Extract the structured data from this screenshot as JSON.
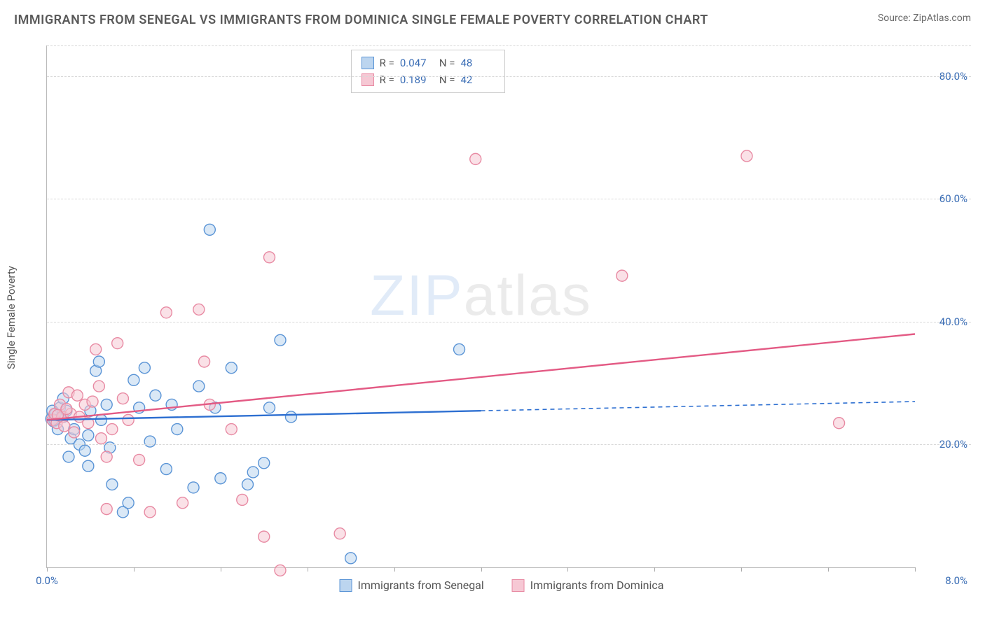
{
  "title": "IMMIGRANTS FROM SENEGAL VS IMMIGRANTS FROM DOMINICA SINGLE FEMALE POVERTY CORRELATION CHART",
  "source": "Source: ZipAtlas.com",
  "y_axis_label": "Single Female Poverty",
  "watermark": {
    "part1": "ZIP",
    "part2": "atlas"
  },
  "chart": {
    "type": "scatter",
    "xlim": [
      0,
      8.0
    ],
    "ylim": [
      0,
      85
    ],
    "y_ticks": [
      20.0,
      40.0,
      60.0,
      80.0
    ],
    "y_tick_labels": [
      "20.0%",
      "40.0%",
      "60.0%",
      "80.0%"
    ],
    "x_tick_positions": [
      0,
      0.8,
      1.6,
      2.4,
      3.2,
      4.0,
      4.8,
      5.6,
      6.4,
      7.2,
      8.0
    ],
    "x_min_label": "0.0%",
    "x_max_label": "8.0%",
    "grid_color": "#d8d8d8",
    "axis_color": "#bbbbbb",
    "background_color": "#ffffff",
    "marker_radius": 8,
    "marker_stroke_width": 1.4,
    "trend_line_width": 2.4,
    "series": [
      {
        "name": "Immigrants from Senegal",
        "fill": "#bcd5ef",
        "stroke": "#5a94d6",
        "fill_opacity": 0.55,
        "R": "0.047",
        "N": "48",
        "trend": {
          "x1": 0.0,
          "y1": 24.0,
          "x2": 4.0,
          "y2": 25.5,
          "x2_ext": 8.0,
          "y2_ext": 27.0,
          "color": "#2d6fd1",
          "dash_after_x": 4.0
        },
        "points": [
          [
            0.04,
            24.2
          ],
          [
            0.06,
            23.8
          ],
          [
            0.08,
            25.0
          ],
          [
            0.1,
            22.5
          ],
          [
            0.12,
            26.0
          ],
          [
            0.15,
            24.5
          ],
          [
            0.18,
            25.5
          ],
          [
            0.2,
            18.0
          ],
          [
            0.22,
            21.0
          ],
          [
            0.25,
            22.5
          ],
          [
            0.05,
            25.5
          ],
          [
            0.07,
            24.0
          ],
          [
            0.3,
            20.0
          ],
          [
            0.35,
            19.0
          ],
          [
            0.38,
            21.5
          ],
          [
            0.4,
            25.5
          ],
          [
            0.45,
            32.0
          ],
          [
            0.48,
            33.5
          ],
          [
            0.5,
            24.0
          ],
          [
            0.55,
            26.5
          ],
          [
            0.58,
            19.5
          ],
          [
            0.6,
            13.5
          ],
          [
            0.38,
            16.5
          ],
          [
            0.7,
            9.0
          ],
          [
            0.75,
            10.5
          ],
          [
            0.8,
            30.5
          ],
          [
            0.85,
            26.0
          ],
          [
            0.9,
            32.5
          ],
          [
            0.95,
            20.5
          ],
          [
            1.0,
            28.0
          ],
          [
            1.1,
            16.0
          ],
          [
            1.15,
            26.5
          ],
          [
            1.2,
            22.5
          ],
          [
            1.35,
            13.0
          ],
          [
            1.4,
            29.5
          ],
          [
            1.5,
            55.0
          ],
          [
            1.55,
            26.0
          ],
          [
            1.6,
            14.5
          ],
          [
            1.7,
            32.5
          ],
          [
            1.85,
            13.5
          ],
          [
            1.9,
            15.5
          ],
          [
            2.0,
            17.0
          ],
          [
            2.05,
            26.0
          ],
          [
            2.15,
            37.0
          ],
          [
            2.25,
            24.5
          ],
          [
            2.8,
            1.5
          ],
          [
            3.8,
            35.5
          ],
          [
            0.15,
            27.5
          ]
        ]
      },
      {
        "name": "Immigrants from Dominica",
        "fill": "#f6c8d4",
        "stroke": "#e88aa3",
        "fill_opacity": 0.55,
        "R": "0.189",
        "N": "42",
        "trend": {
          "x1": 0.0,
          "y1": 24.0,
          "x2": 8.0,
          "y2": 38.0,
          "color": "#e35a84"
        },
        "points": [
          [
            0.05,
            24.0
          ],
          [
            0.07,
            25.0
          ],
          [
            0.09,
            23.5
          ],
          [
            0.12,
            26.5
          ],
          [
            0.14,
            24.5
          ],
          [
            0.16,
            23.0
          ],
          [
            0.2,
            28.5
          ],
          [
            0.22,
            25.0
          ],
          [
            0.25,
            22.0
          ],
          [
            0.28,
            28.0
          ],
          [
            0.3,
            24.5
          ],
          [
            0.35,
            26.5
          ],
          [
            0.38,
            23.5
          ],
          [
            0.42,
            27.0
          ],
          [
            0.45,
            35.5
          ],
          [
            0.48,
            29.5
          ],
          [
            0.5,
            21.0
          ],
          [
            0.55,
            18.0
          ],
          [
            0.6,
            22.5
          ],
          [
            0.65,
            36.5
          ],
          [
            0.7,
            27.5
          ],
          [
            0.75,
            24.0
          ],
          [
            0.55,
            9.5
          ],
          [
            0.85,
            17.5
          ],
          [
            0.95,
            9.0
          ],
          [
            1.1,
            41.5
          ],
          [
            1.25,
            10.5
          ],
          [
            1.4,
            42.0
          ],
          [
            1.45,
            33.5
          ],
          [
            1.5,
            26.5
          ],
          [
            1.7,
            22.5
          ],
          [
            1.8,
            11.0
          ],
          [
            2.0,
            5.0
          ],
          [
            2.05,
            50.5
          ],
          [
            2.15,
            -0.5
          ],
          [
            2.7,
            5.5
          ],
          [
            3.95,
            66.5
          ],
          [
            5.3,
            47.5
          ],
          [
            6.45,
            67.0
          ],
          [
            7.3,
            23.5
          ],
          [
            0.1,
            24.8
          ],
          [
            0.18,
            25.8
          ]
        ]
      }
    ]
  },
  "stats_box": {
    "rows": [
      {
        "swatch_fill": "#bcd5ef",
        "swatch_stroke": "#5a94d6",
        "r_label": "R =",
        "r_val": "0.047",
        "n_label": "N =",
        "n_val": "48"
      },
      {
        "swatch_fill": "#f6c8d4",
        "swatch_stroke": "#e88aa3",
        "r_label": "R =",
        "r_val": "0.189",
        "n_label": "N =",
        "n_val": "42"
      }
    ]
  },
  "bottom_legend": [
    {
      "swatch_fill": "#bcd5ef",
      "swatch_stroke": "#5a94d6",
      "label": "Immigrants from Senegal"
    },
    {
      "swatch_fill": "#f6c8d4",
      "swatch_stroke": "#e88aa3",
      "label": "Immigrants from Dominica"
    }
  ]
}
